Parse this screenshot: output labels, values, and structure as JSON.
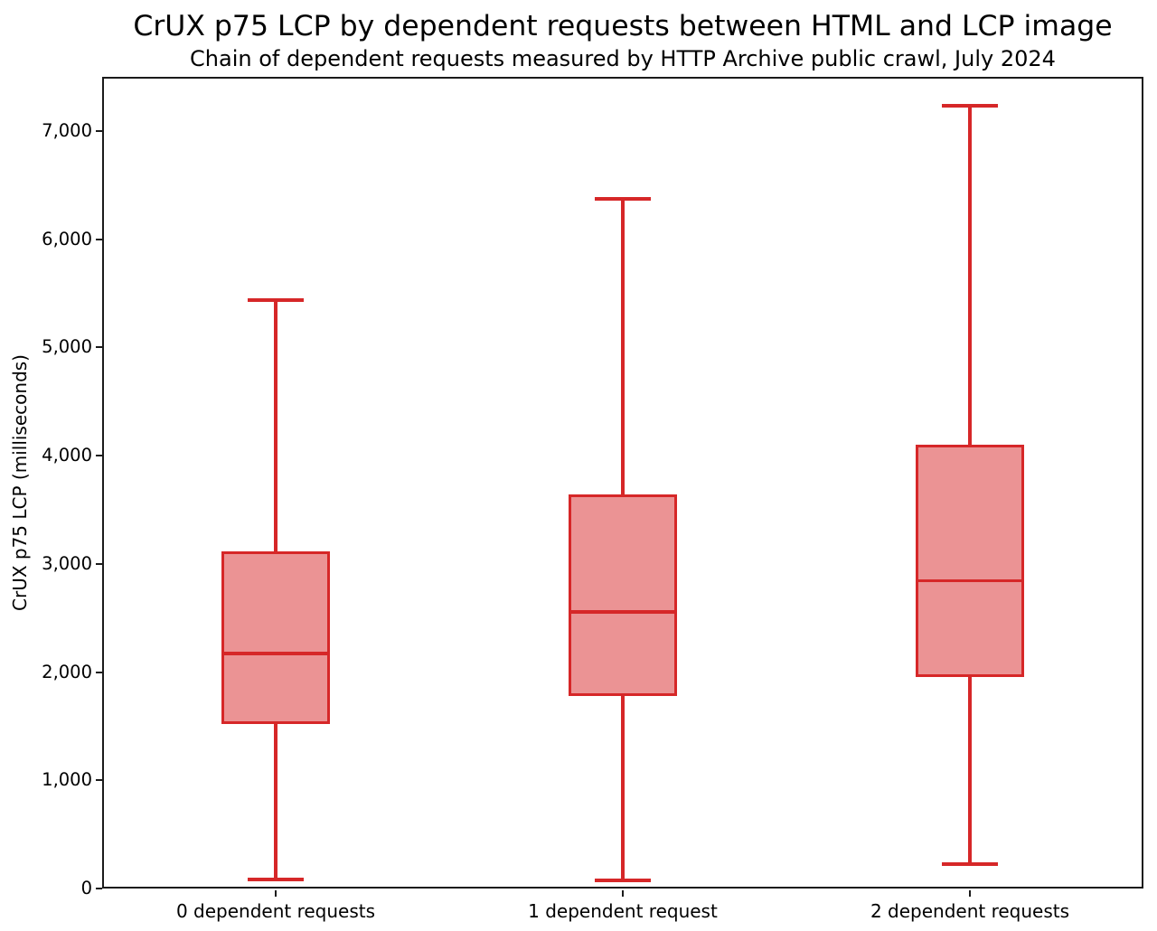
{
  "title": "CrUX p75 LCP by dependent requests between HTML and LCP image",
  "subtitle": "Chain of dependent requests measured by HTTP Archive public crawl, July 2024",
  "chart_data": {
    "type": "boxplot",
    "title": "CrUX p75 LCP by dependent requests between HTML and LCP image",
    "subtitle": "Chain of dependent requests measured by HTTP Archive public crawl, July 2024",
    "ylabel": "CrUX p75 LCP (milliseconds)",
    "xlabel": "",
    "ylim": [
      0,
      7500
    ],
    "grid": false,
    "legend": null,
    "yticks": [
      {
        "value": 0,
        "label": "0"
      },
      {
        "value": 1000,
        "label": "1,000"
      },
      {
        "value": 2000,
        "label": "2,000"
      },
      {
        "value": 3000,
        "label": "3,000"
      },
      {
        "value": 4000,
        "label": "4,000"
      },
      {
        "value": 5000,
        "label": "5,000"
      },
      {
        "value": 6000,
        "label": "6,000"
      },
      {
        "value": 7000,
        "label": "7,000"
      }
    ],
    "categories": [
      "0 dependent requests",
      "1 dependent request",
      "2 dependent requests"
    ],
    "series": [
      {
        "category": "0 dependent requests",
        "whisker_low": 85,
        "q1": 1535,
        "median": 2170,
        "q3": 3100,
        "whisker_high": 5435
      },
      {
        "category": "1 dependent request",
        "whisker_low": 75,
        "q1": 1795,
        "median": 2555,
        "q3": 3625,
        "whisker_high": 6370
      },
      {
        "category": "2 dependent requests",
        "whisker_low": 225,
        "q1": 1965,
        "median": 2845,
        "q3": 4085,
        "whisker_high": 7235
      }
    ],
    "colors": {
      "box_edge": "#d62728",
      "box_fill": "#eb9394",
      "axis": "#1b1b1b",
      "text": "#000000"
    }
  }
}
